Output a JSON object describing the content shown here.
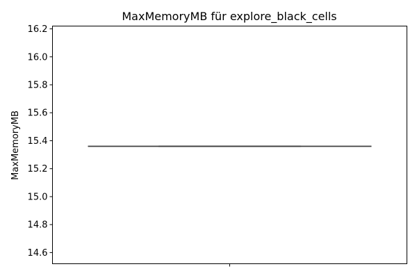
{
  "chart_data": {
    "type": "box",
    "title": "MaxMemoryMB für explore_black_cells",
    "xlabel": "",
    "ylabel": "MaxMemoryMB",
    "ylim": [
      14.52,
      16.22
    ],
    "yticks": [
      14.6,
      14.8,
      15.0,
      15.2,
      15.4,
      15.6,
      15.8,
      16.0,
      16.2
    ],
    "ytick_labels": [
      "14.6",
      "14.8",
      "15.0",
      "15.2",
      "15.4",
      "15.6",
      "15.8",
      "16.0",
      "16.2"
    ],
    "grid": false,
    "series": [
      {
        "min": 15.36,
        "q1": 15.36,
        "median": 15.36,
        "q3": 15.36,
        "max": 15.36
      }
    ],
    "colors": {
      "box_line": "#3f3f3f",
      "whisker": "#3f3f3f",
      "axis": "#000000"
    }
  }
}
